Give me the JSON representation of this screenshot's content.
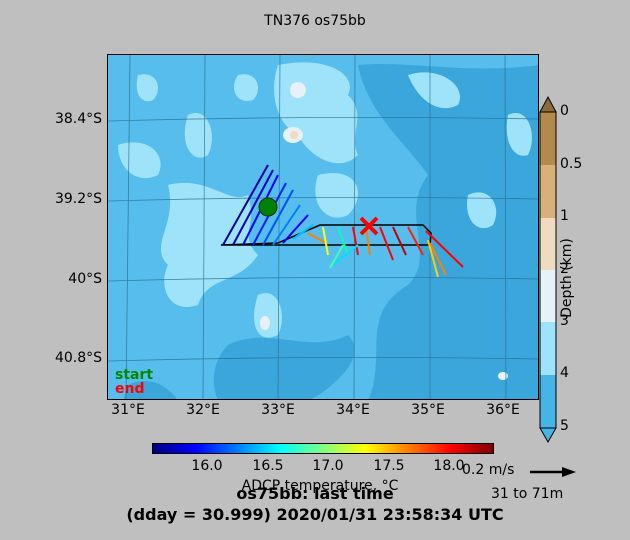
{
  "title": "TN376 os75bb",
  "map": {
    "lat_labels": [
      "38.4°S",
      "39.2°S",
      "40°S",
      "40.8°S"
    ],
    "lon_labels": [
      "31°E",
      "32°E",
      "33°E",
      "34°E",
      "35°E",
      "36°E"
    ],
    "legend_start": "start",
    "legend_end": "end",
    "start_color": "#008000",
    "end_color": "#ff0000"
  },
  "depth_colorbar": {
    "label": "Depth (km)",
    "ticks": [
      "0",
      "0.5",
      "1",
      "2",
      "3",
      "4",
      "5"
    ],
    "colors": [
      "#8c6a3a",
      "#b48a4c",
      "#d7b07a",
      "#efdcc0",
      "#e7f1f7",
      "#9fe3fb",
      "#47b4e8"
    ]
  },
  "temp_colorbar": {
    "label": "ADCP temperature, °C",
    "ticks": [
      "16.0",
      "16.5",
      "17.0",
      "17.5",
      "18.0"
    ],
    "range": [
      15.6,
      18.4
    ]
  },
  "vector_scale": {
    "label": "0.2 m/s",
    "depth_range": "31 to 71m"
  },
  "footer": {
    "line1": "os75bb: last time",
    "line2": "(dday = 30.999) 2020/01/31 23:58:34 UTC"
  }
}
